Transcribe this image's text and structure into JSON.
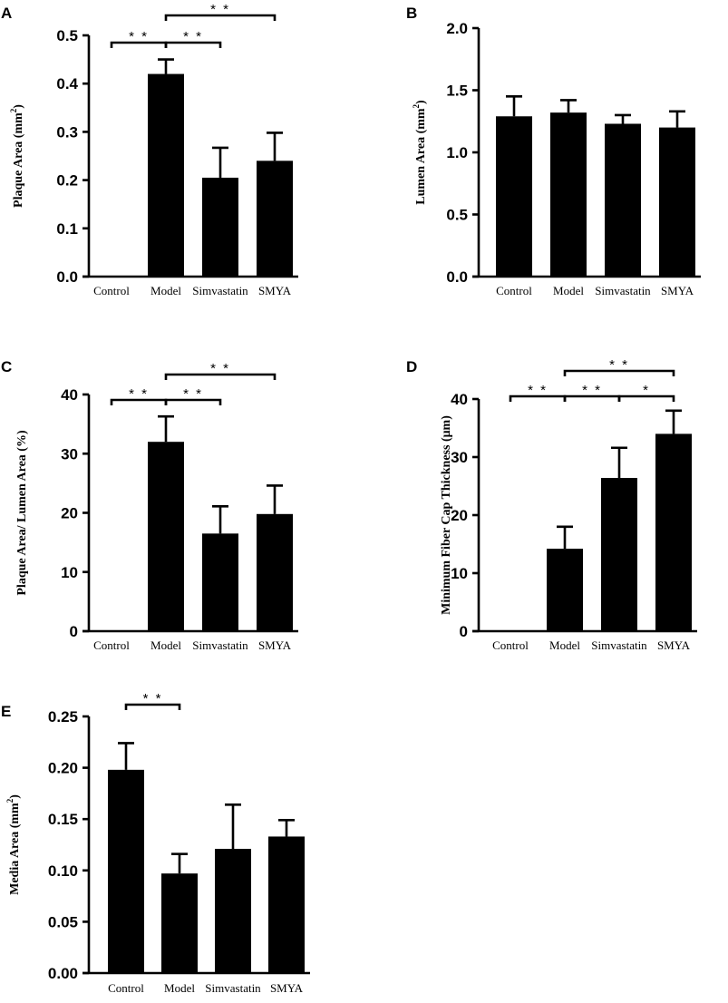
{
  "chart_data": [
    {
      "panel": "A",
      "type": "bar",
      "ylabel": "Plaque Area (mm2)",
      "ylabel_main": "Plaque Area (mm",
      "ylabel_sup": "2",
      "ylabel_end": ")",
      "categories": [
        "Control",
        "Model",
        "Simvastatin",
        "SMYA"
      ],
      "values": [
        0,
        0.42,
        0.205,
        0.24
      ],
      "errors": [
        0,
        0.03,
        0.062,
        0.058
      ],
      "ylim": [
        0,
        0.5
      ],
      "yticks": [
        "0.0",
        "0.1",
        "0.2",
        "0.3",
        "0.4",
        "0.5"
      ],
      "significance": [
        {
          "from": 0,
          "to": 1,
          "label": "* *"
        },
        {
          "from": 1,
          "to": 2,
          "label": "* *"
        },
        {
          "from": 1,
          "to": 3,
          "label": "* *"
        }
      ]
    },
    {
      "panel": "B",
      "type": "bar",
      "ylabel": "Lumen Area (mm2)",
      "ylabel_main": "Lumen Area (mm",
      "ylabel_sup": "2",
      "ylabel_end": ")",
      "categories": [
        "Control",
        "Model",
        "Simvastatin",
        "SMYA"
      ],
      "values": [
        1.29,
        1.32,
        1.23,
        1.2
      ],
      "errors": [
        0.16,
        0.1,
        0.07,
        0.13
      ],
      "ylim": [
        0,
        2.0
      ],
      "yticks": [
        "0.0",
        "0.5",
        "1.0",
        "1.5",
        "2.0"
      ],
      "significance": []
    },
    {
      "panel": "C",
      "type": "bar",
      "ylabel": "Plaque Area/ Lumen Area (%)",
      "ylabel_main": "Plaque Area/ Lumen Area (%)",
      "ylabel_sup": "",
      "ylabel_end": "",
      "categories": [
        "Control",
        "Model",
        "Simvastatin",
        "SMYA"
      ],
      "values": [
        0,
        32,
        16.5,
        19.8
      ],
      "errors": [
        0,
        4.3,
        4.6,
        4.8
      ],
      "ylim": [
        0,
        40
      ],
      "yticks": [
        "0",
        "10",
        "20",
        "30",
        "40"
      ],
      "significance": [
        {
          "from": 0,
          "to": 1,
          "label": "* *"
        },
        {
          "from": 1,
          "to": 2,
          "label": "* *"
        },
        {
          "from": 1,
          "to": 3,
          "label": "* *"
        }
      ]
    },
    {
      "panel": "D",
      "type": "bar",
      "ylabel": "Minimum Fiber Cap Thickness (μm)",
      "ylabel_main": "Minimum Fiber Cap Thickness (μm)",
      "ylabel_sup": "",
      "ylabel_end": "",
      "categories": [
        "Control",
        "Model",
        "Simvastatin",
        "SMYA"
      ],
      "values": [
        0,
        14.2,
        26.4,
        34
      ],
      "errors": [
        0,
        3.8,
        5.2,
        4
      ],
      "ylim": [
        0,
        40
      ],
      "yticks": [
        "0",
        "10",
        "20",
        "30",
        "40"
      ],
      "significance": [
        {
          "from": 0,
          "to": 1,
          "label": "* *"
        },
        {
          "from": 1,
          "to": 2,
          "label": "* *"
        },
        {
          "from": 2,
          "to": 3,
          "label": "*"
        },
        {
          "from": 1,
          "to": 3,
          "label": "* *"
        }
      ]
    },
    {
      "panel": "E",
      "type": "bar",
      "ylabel": "Media Area (mm2)",
      "ylabel_main": "Media Area (mm",
      "ylabel_sup": "2",
      "ylabel_end": ")",
      "categories": [
        "Control",
        "Model",
        "Simvastatin",
        "SMYA"
      ],
      "values": [
        0.198,
        0.097,
        0.121,
        0.133
      ],
      "errors": [
        0.026,
        0.019,
        0.043,
        0.016
      ],
      "ylim": [
        0,
        0.25
      ],
      "yticks": [
        "0.00",
        "0.05",
        "0.10",
        "0.15",
        "0.20",
        "0.25"
      ],
      "significance": [
        {
          "from": 0,
          "to": 1,
          "label": "* *"
        }
      ]
    }
  ]
}
